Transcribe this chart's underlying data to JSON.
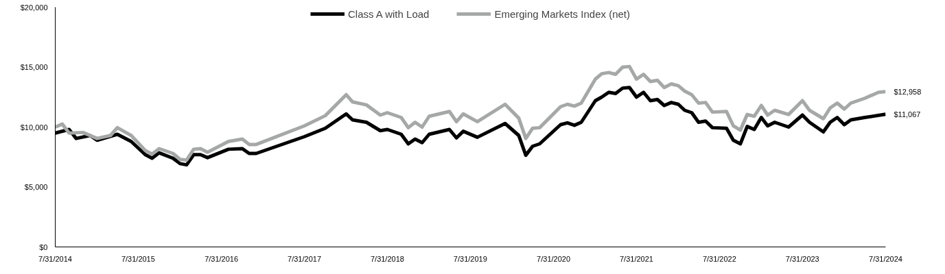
{
  "chart_data": {
    "type": "line",
    "xlim": [
      "2014-07-31",
      "2024-07-31"
    ],
    "xticks": [
      {
        "value": "2014-07-31",
        "label": "7/31/2014"
      },
      {
        "value": "2015-07-31",
        "label": "7/31/2015"
      },
      {
        "value": "2016-07-31",
        "label": "7/31/2016"
      },
      {
        "value": "2017-07-31",
        "label": "7/31/2017"
      },
      {
        "value": "2018-07-31",
        "label": "7/31/2018"
      },
      {
        "value": "2019-07-31",
        "label": "7/31/2019"
      },
      {
        "value": "2020-07-31",
        "label": "7/31/2020"
      },
      {
        "value": "2021-07-31",
        "label": "7/31/2021"
      },
      {
        "value": "2022-07-31",
        "label": "7/31/2022"
      },
      {
        "value": "2023-07-31",
        "label": "7/31/2023"
      },
      {
        "value": "2024-07-31",
        "label": "7/31/2024"
      }
    ],
    "ylim": [
      0,
      20000
    ],
    "yticks": [
      {
        "value": 0,
        "label": "$0"
      },
      {
        "value": 5000,
        "label": "$5,000"
      },
      {
        "value": 10000,
        "label": "$10,000"
      },
      {
        "value": 15000,
        "label": "$15,000"
      },
      {
        "value": 20000,
        "label": "$20,000"
      }
    ],
    "grid": false,
    "legend": "top",
    "marker": "none",
    "line_style": "solid",
    "series": [
      {
        "name": "Class A with Load",
        "color": "#000000",
        "x": [
          "2014-07-31",
          "2014-09-30",
          "2014-10-31",
          "2014-12-31",
          "2015-01-31",
          "2015-04-30",
          "2015-06-30",
          "2015-08-31",
          "2015-09-30",
          "2015-10-31",
          "2015-12-31",
          "2016-01-31",
          "2016-02-29",
          "2016-03-31",
          "2016-04-30",
          "2016-05-31",
          "2016-08-31",
          "2016-10-31",
          "2016-11-30",
          "2016-12-31",
          "2017-07-31",
          "2017-10-31",
          "2018-01-31",
          "2018-02-28",
          "2018-04-30",
          "2018-06-30",
          "2018-07-31",
          "2018-09-30",
          "2018-10-31",
          "2018-11-30",
          "2018-12-31",
          "2019-01-31",
          "2019-04-30",
          "2019-05-31",
          "2019-06-30",
          "2019-08-31",
          "2019-12-31",
          "2020-02-29",
          "2020-03-31",
          "2020-04-30",
          "2020-05-31",
          "2020-08-31",
          "2020-09-30",
          "2020-10-31",
          "2020-11-30",
          "2021-01-31",
          "2021-02-28",
          "2021-03-31",
          "2021-04-30",
          "2021-05-31",
          "2021-06-30",
          "2021-07-31",
          "2021-08-31",
          "2021-09-30",
          "2021-10-31",
          "2021-11-30",
          "2021-12-31",
          "2022-01-31",
          "2022-02-28",
          "2022-03-31",
          "2022-04-30",
          "2022-05-31",
          "2022-06-30",
          "2022-08-31",
          "2022-09-30",
          "2022-10-31",
          "2022-11-30",
          "2022-12-31",
          "2023-01-31",
          "2023-02-28",
          "2023-03-31",
          "2023-05-31",
          "2023-07-31",
          "2023-08-31",
          "2023-10-31",
          "2023-11-30",
          "2023-12-31",
          "2024-01-31",
          "2024-02-29",
          "2024-04-30",
          "2024-07-31"
        ],
        "values": [
          9500,
          9800,
          9050,
          9300,
          8900,
          9400,
          8800,
          7700,
          7400,
          7850,
          7400,
          6950,
          6850,
          7700,
          7700,
          7450,
          8150,
          8200,
          7800,
          7800,
          9200,
          9900,
          11100,
          10600,
          10400,
          9700,
          9800,
          9400,
          8600,
          9000,
          8700,
          9400,
          9800,
          9100,
          9650,
          9150,
          10300,
          9300,
          7650,
          8400,
          8600,
          10200,
          10350,
          10150,
          10400,
          12200,
          12500,
          12900,
          12800,
          13250,
          13300,
          12500,
          12900,
          12200,
          12300,
          11800,
          12050,
          11900,
          11400,
          11200,
          10400,
          10500,
          9950,
          9900,
          8900,
          8600,
          10050,
          9800,
          10800,
          10100,
          10400,
          10000,
          11000,
          10400,
          9600,
          10400,
          10800,
          10200,
          10600,
          10800,
          11067
        ]
      },
      {
        "name": "Emerging Markets Index (net)",
        "color": "#a6a8a8",
        "x": [
          "2014-07-31",
          "2014-08-31",
          "2014-09-30",
          "2014-11-30",
          "2015-01-31",
          "2015-03-31",
          "2015-04-30",
          "2015-06-30",
          "2015-08-31",
          "2015-09-30",
          "2015-10-31",
          "2015-12-31",
          "2016-01-31",
          "2016-02-29",
          "2016-03-31",
          "2016-04-30",
          "2016-05-31",
          "2016-08-31",
          "2016-10-31",
          "2016-11-30",
          "2016-12-31",
          "2017-07-31",
          "2017-10-31",
          "2018-01-31",
          "2018-02-28",
          "2018-04-30",
          "2018-06-30",
          "2018-07-31",
          "2018-09-30",
          "2018-10-31",
          "2018-11-30",
          "2018-12-31",
          "2019-01-31",
          "2019-04-30",
          "2019-05-31",
          "2019-06-30",
          "2019-08-31",
          "2019-12-31",
          "2020-02-29",
          "2020-03-31",
          "2020-04-30",
          "2020-05-31",
          "2020-08-31",
          "2020-09-30",
          "2020-10-31",
          "2020-11-30",
          "2021-01-31",
          "2021-02-28",
          "2021-03-31",
          "2021-04-30",
          "2021-05-31",
          "2021-06-30",
          "2021-07-31",
          "2021-08-31",
          "2021-09-30",
          "2021-10-31",
          "2021-11-30",
          "2021-12-31",
          "2022-01-31",
          "2022-02-28",
          "2022-03-31",
          "2022-04-30",
          "2022-05-31",
          "2022-06-30",
          "2022-08-31",
          "2022-09-30",
          "2022-10-31",
          "2022-11-30",
          "2022-12-31",
          "2023-01-31",
          "2023-02-28",
          "2023-03-31",
          "2023-05-31",
          "2023-07-31",
          "2023-08-31",
          "2023-10-31",
          "2023-11-30",
          "2023-12-31",
          "2024-01-31",
          "2024-02-29",
          "2024-04-30",
          "2024-06-30",
          "2024-07-31"
        ],
        "values": [
          10000,
          10250,
          9500,
          9550,
          9050,
          9300,
          9950,
          9300,
          8050,
          7750,
          8200,
          7800,
          7300,
          7250,
          8150,
          8200,
          7900,
          8800,
          9000,
          8550,
          8550,
          10100,
          10950,
          12700,
          12100,
          11850,
          11000,
          11200,
          10800,
          9950,
          10400,
          10000,
          10900,
          11300,
          10450,
          11100,
          10450,
          11900,
          10750,
          9050,
          9900,
          9950,
          11700,
          11900,
          11750,
          12000,
          14000,
          14450,
          14550,
          14400,
          15000,
          15050,
          14000,
          14400,
          13800,
          13900,
          13300,
          13600,
          13450,
          13000,
          12700,
          12000,
          12050,
          11250,
          11300,
          10100,
          9750,
          11050,
          10900,
          11800,
          11000,
          11400,
          11050,
          12200,
          11400,
          10700,
          11600,
          12000,
          11500,
          12000,
          12400,
          12900,
          12958
        ]
      }
    ],
    "annotations": [
      {
        "text": "$12,958",
        "x": "2024-07-31",
        "y": 12958
      },
      {
        "text": "$11,067",
        "x": "2024-07-31",
        "y": 11067
      }
    ]
  }
}
